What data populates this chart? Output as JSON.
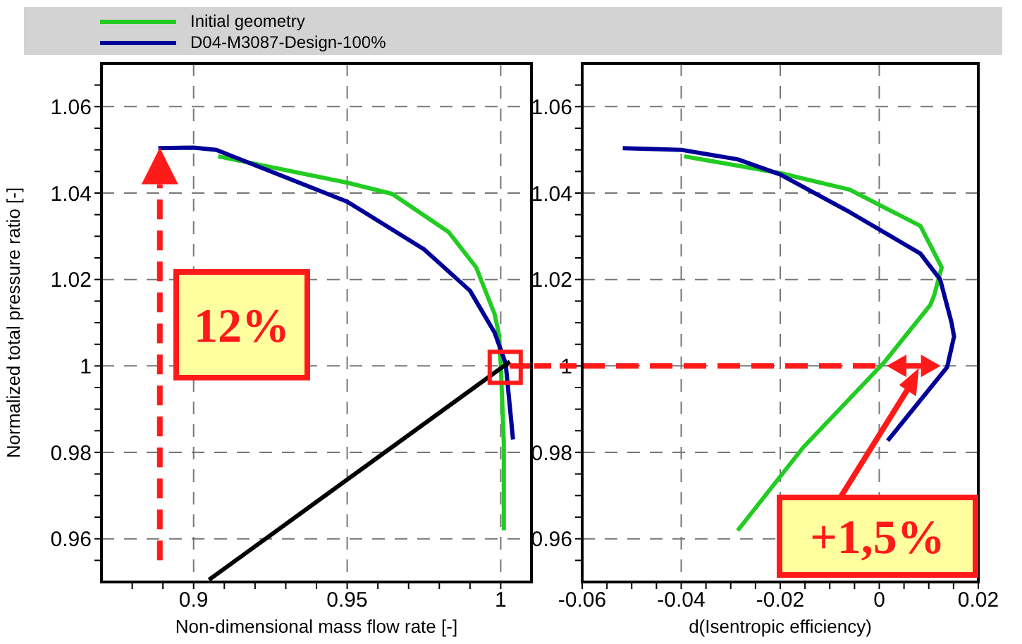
{
  "chart_data": [
    {
      "type": "line",
      "xlabel": "Non-dimensional mass flow rate [-]",
      "ylabel": "Normalized total pressure ratio [-]",
      "legend": "top",
      "grid": true,
      "marker": "none",
      "line_style": "solid",
      "xlim": [
        0.87,
        1.01
      ],
      "ylim": [
        0.95,
        1.07
      ],
      "xticks": [
        {
          "value": 0.88,
          "label": null
        },
        {
          "value": 0.89,
          "label": null
        },
        0.9,
        {
          "value": 0.91,
          "label": null
        },
        {
          "value": 0.92,
          "label": null
        },
        {
          "value": 0.93,
          "label": null
        },
        {
          "value": 0.94,
          "label": null
        },
        0.95,
        {
          "value": 0.96,
          "label": null
        },
        {
          "value": 0.97,
          "label": null
        },
        {
          "value": 0.98,
          "label": null
        },
        {
          "value": 0.99,
          "label": null
        },
        1
      ],
      "yticks": [
        {
          "value": 0.955,
          "label": null
        },
        0.96,
        {
          "value": 0.965,
          "label": null
        },
        {
          "value": 0.97,
          "label": null
        },
        {
          "value": 0.975,
          "label": null
        },
        0.98,
        {
          "value": 0.985,
          "label": null
        },
        {
          "value": 0.99,
          "label": null
        },
        {
          "value": 0.995,
          "label": null
        },
        1,
        {
          "value": 1.005,
          "label": null
        },
        {
          "value": 1.01,
          "label": null
        },
        {
          "value": 1.015,
          "label": null
        },
        1.02,
        {
          "value": 1.025,
          "label": null
        },
        {
          "value": 1.03,
          "label": null
        },
        {
          "value": 1.035,
          "label": null
        },
        1.04,
        {
          "value": 1.045,
          "label": null
        },
        {
          "value": 1.05,
          "label": null
        },
        {
          "value": 1.055,
          "label": null
        },
        1.06,
        {
          "value": 1.065,
          "label": null
        }
      ],
      "annotations": [
        "12%"
      ],
      "series": [
        {
          "name": "Initial geometry",
          "color": "#22cc22",
          "x": [
            0.908,
            0.95,
            0.9647,
            0.983,
            0.992,
            0.998,
            0.9993,
            1.0,
            1.001,
            1.001
          ],
          "values": [
            1.0485,
            1.0424,
            1.0398,
            1.031,
            1.0228,
            1.012,
            1.0077,
            1.0006,
            0.9822,
            0.962
          ]
        },
        {
          "name": "D04-M3087-Design-100%",
          "color": "#000099",
          "x": [
            0.8885,
            0.9,
            0.9074,
            0.95,
            0.975,
            0.99,
            0.998,
            1.0016,
            1.004
          ],
          "values": [
            1.0504,
            1.0505,
            1.05,
            1.038,
            1.027,
            1.0174,
            1.0077,
            1.0006,
            0.983
          ]
        },
        {
          "color": "#000000",
          "x": [
            0.905,
            1.003
          ],
          "values": [
            0.9505,
            1.001
          ]
        },
        {
          "color": "#ff1a1a",
          "line_style": "dashed",
          "x": [
            1.003,
            1.01
          ],
          "values": [
            1.0,
            1.0
          ]
        }
      ]
    },
    {
      "type": "line",
      "xlabel": "d(Isentropic efficiency)",
      "grid": true,
      "marker": "none",
      "line_style": "solid",
      "xlim": [
        -0.06,
        0.02
      ],
      "ylim": [
        0.95,
        1.07
      ],
      "xticks": [
        -0.06,
        {
          "value": -0.055,
          "label": null
        },
        {
          "value": -0.05,
          "label": null
        },
        {
          "value": -0.045,
          "label": null
        },
        -0.04,
        {
          "value": -0.035,
          "label": null
        },
        {
          "value": -0.03,
          "label": null
        },
        {
          "value": -0.025,
          "label": null
        },
        -0.02,
        {
          "value": -0.015,
          "label": null
        },
        {
          "value": -0.01,
          "label": null
        },
        {
          "value": -0.005,
          "label": null
        },
        0,
        {
          "value": 0.005,
          "label": null
        },
        {
          "value": 0.01,
          "label": null
        },
        {
          "value": 0.015,
          "label": null
        },
        0.02
      ],
      "yticks": [
        {
          "value": 0.955,
          "label": null
        },
        0.96,
        {
          "value": 0.965,
          "label": null
        },
        {
          "value": 0.97,
          "label": null
        },
        {
          "value": 0.975,
          "label": null
        },
        0.98,
        {
          "value": 0.985,
          "label": null
        },
        {
          "value": 0.99,
          "label": null
        },
        {
          "value": 0.995,
          "label": null
        },
        1,
        {
          "value": 1.005,
          "label": null
        },
        {
          "value": 1.01,
          "label": null
        },
        {
          "value": 1.015,
          "label": null
        },
        1.02,
        {
          "value": 1.025,
          "label": null
        },
        {
          "value": 1.03,
          "label": null
        },
        {
          "value": 1.035,
          "label": null
        },
        1.04,
        {
          "value": 1.045,
          "label": null
        },
        {
          "value": 1.05,
          "label": null
        },
        {
          "value": 1.055,
          "label": null
        },
        1.06,
        {
          "value": 1.065,
          "label": null
        }
      ],
      "annotations": [
        "+1,5%"
      ],
      "series": [
        {
          "color": "#22cc22",
          "x": [
            -0.0394,
            -0.02,
            -0.006,
            0.0083,
            0.0126,
            0.0111,
            0.0103,
            0.0009,
            -0.0154,
            -0.0286
          ],
          "values": [
            1.0485,
            1.0446,
            1.0408,
            1.0324,
            1.0228,
            1.0164,
            1.0141,
            1.0007,
            0.9811,
            0.9619
          ]
        },
        {
          "color": "#000099",
          "x": [
            -0.0518,
            -0.04,
            -0.0286,
            -0.02,
            -0.006,
            0.0083,
            0.0123,
            0.0146,
            0.0151,
            0.0137,
            0.0017
          ],
          "values": [
            1.0504,
            1.05,
            1.0478,
            1.0443,
            1.0356,
            1.026,
            1.02,
            1.01,
            1.0068,
            0.9997,
            0.9827
          ]
        },
        {
          "color": "#ff1a1a",
          "line_style": "dashed",
          "x": [
            -0.06,
            0.0015
          ],
          "values": [
            1.0,
            1.0
          ]
        }
      ]
    }
  ]
}
